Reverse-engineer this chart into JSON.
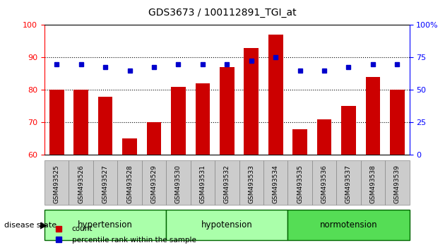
{
  "title": "GDS3673 / 100112891_TGI_at",
  "categories": [
    "GSM493525",
    "GSM493526",
    "GSM493527",
    "GSM493528",
    "GSM493529",
    "GSM493530",
    "GSM493531",
    "GSM493532",
    "GSM493533",
    "GSM493534",
    "GSM493535",
    "GSM493536",
    "GSM493537",
    "GSM493538",
    "GSM493539"
  ],
  "bar_values": [
    80,
    80,
    78,
    65,
    70,
    81,
    82,
    87,
    93,
    97,
    68,
    71,
    75,
    84,
    80
  ],
  "dot_values": [
    88,
    88,
    87,
    86,
    87,
    88,
    88,
    88,
    89,
    90,
    86,
    86,
    87,
    88,
    88
  ],
  "bar_color": "#cc0000",
  "dot_color": "#0000cc",
  "ylim_left": [
    60,
    100
  ],
  "ylim_right": [
    0,
    100
  ],
  "yticks_left": [
    60,
    70,
    80,
    90,
    100
  ],
  "yticks_right": [
    0,
    25,
    50,
    75,
    100
  ],
  "ytick_labels_right": [
    "0",
    "25",
    "50",
    "75",
    "100%"
  ],
  "groups": [
    {
      "label": "hypertension",
      "start": 0,
      "end": 5,
      "color": "#ccffcc"
    },
    {
      "label": "hypotension",
      "start": 5,
      "end": 10,
      "color": "#ccffcc"
    },
    {
      "label": "normotension",
      "start": 10,
      "end": 15,
      "color": "#33cc33"
    }
  ],
  "group_colors": [
    "#ccffcc",
    "#ccffcc",
    "#33cc33"
  ],
  "group_border_colors": [
    "#006600",
    "#006600",
    "#006600"
  ],
  "disease_state_label": "disease state",
  "legend_count_label": "count",
  "legend_percentile_label": "percentile rank within the sample",
  "bar_width": 0.6,
  "tick_label_bg": "#d0d0d0",
  "gridline_style": "dotted",
  "gridline_color": "#000000"
}
